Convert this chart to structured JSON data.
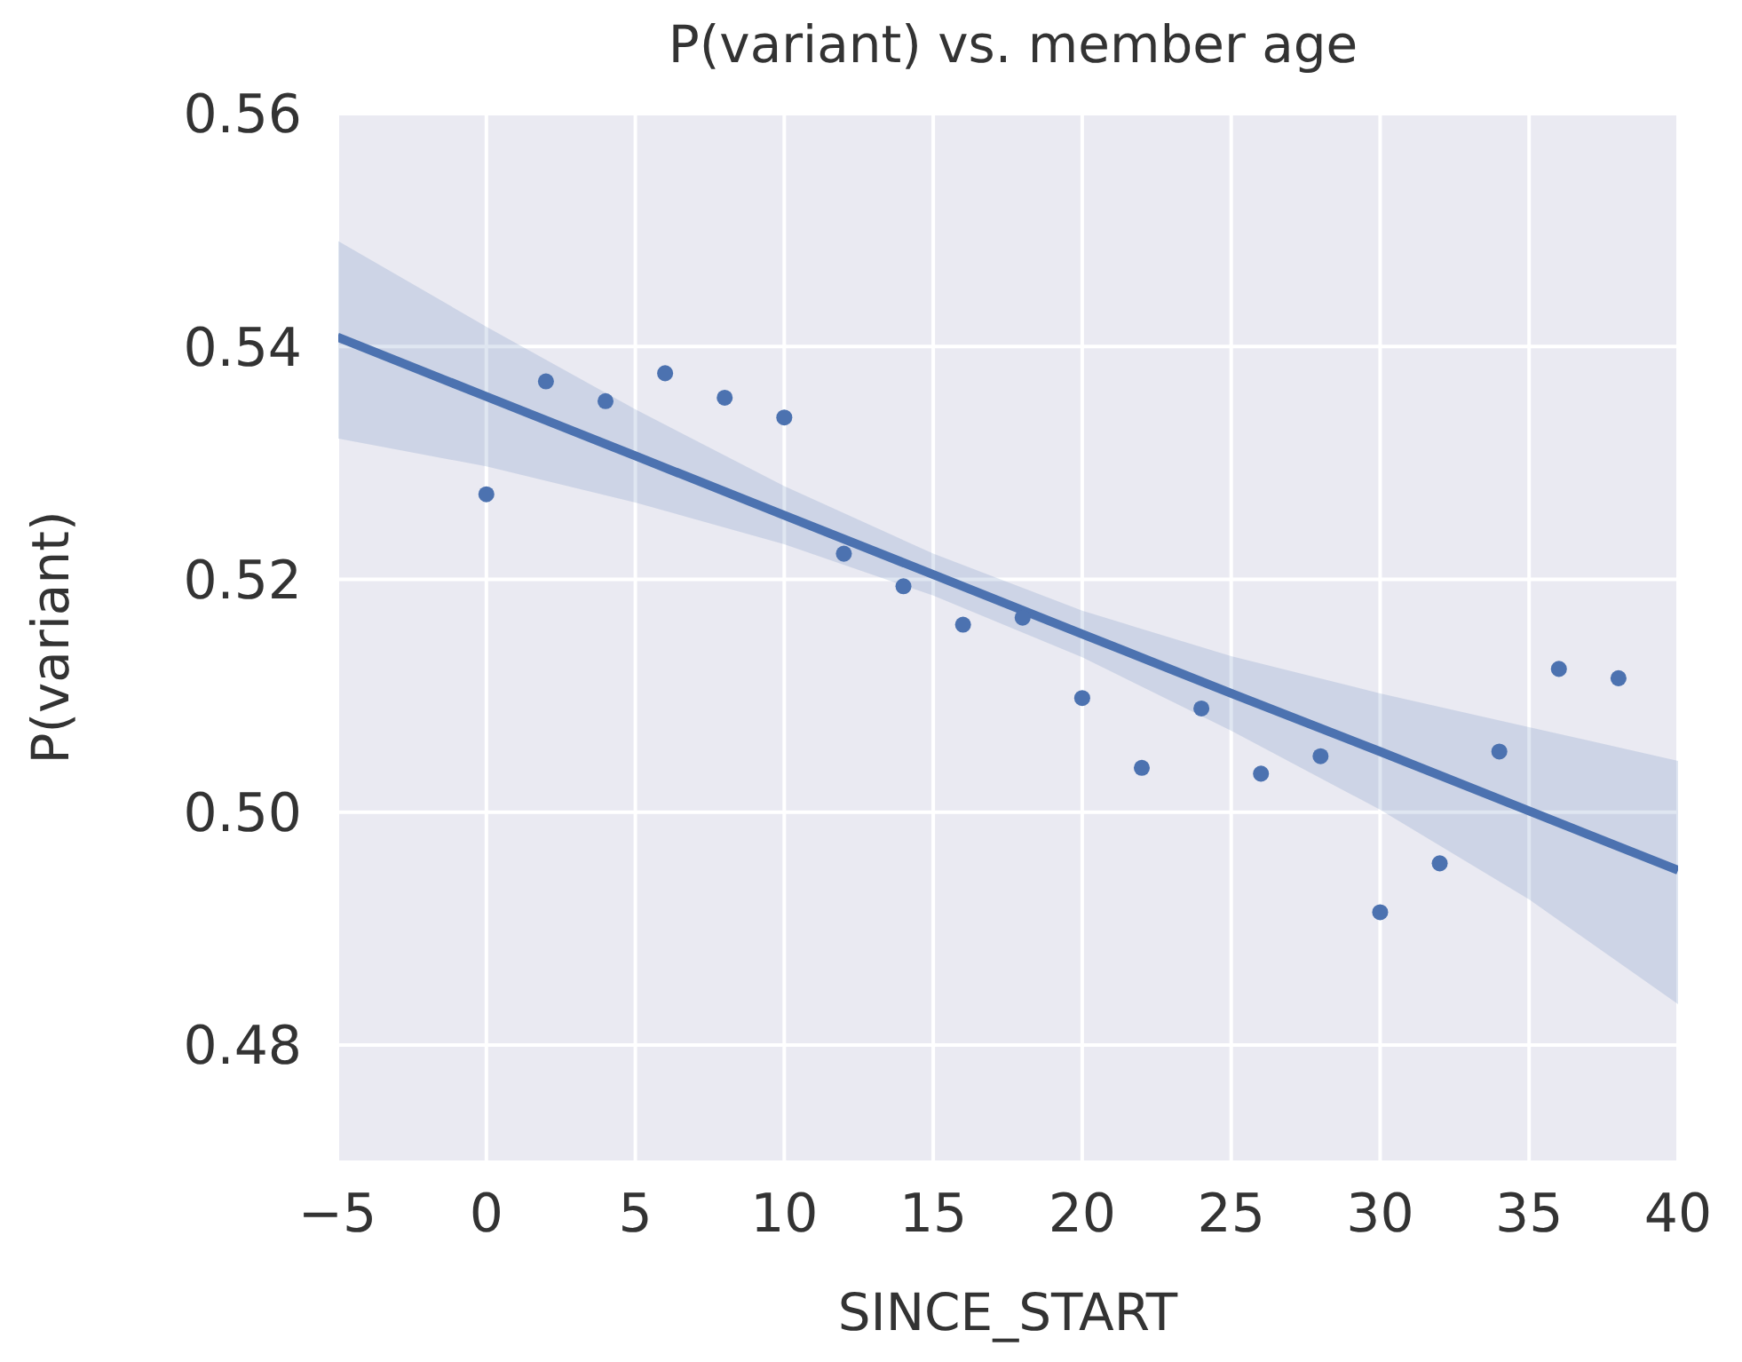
{
  "chart_data": {
    "type": "scatter",
    "title": "P(variant) vs. member age",
    "xlabel": "SINCE_START",
    "ylabel": "P(variant)",
    "series": [
      {
        "type": "scatter",
        "color": "#4c72b0",
        "marker": "circle",
        "x": [
          0,
          2,
          4,
          6,
          8,
          10,
          12,
          14,
          16,
          18,
          20,
          22,
          24,
          26,
          28,
          30,
          32,
          34,
          36,
          38
        ],
        "values": [
          0.5273,
          0.537,
          0.5353,
          0.5377,
          0.5356,
          0.5339,
          0.5222,
          0.5194,
          0.5161,
          0.5167,
          0.5098,
          0.5038,
          0.5089,
          0.5033,
          0.5048,
          0.4914,
          0.4956,
          0.5052,
          0.5123,
          0.5115
        ]
      },
      {
        "marker": "none",
        "type": "line",
        "color": "#4c72b0",
        "x": [
          -5,
          0,
          5,
          10,
          15,
          20,
          25,
          30,
          35,
          40
        ],
        "values": [
          0.5408,
          0.5357,
          0.5306,
          0.5255,
          0.5204,
          0.5153,
          0.5102,
          0.5052,
          0.5001,
          0.495
        ],
        "lower": [
          0.5321,
          0.5297,
          0.5266,
          0.523,
          0.5186,
          0.5133,
          0.507,
          0.5002,
          0.4925,
          0.4835
        ],
        "upper": [
          0.5491,
          0.5417,
          0.5346,
          0.528,
          0.5222,
          0.5173,
          0.5134,
          0.5102,
          0.5073,
          0.5044
        ]
      }
    ],
    "xlim": [
      -5,
      40
    ],
    "xticks": [
      {
        "value": -5,
        "label": "−5"
      },
      0,
      5,
      10,
      15,
      20,
      25,
      30,
      35,
      40
    ],
    "ylim": [
      0.47,
      0.56
    ],
    "yticks": [
      0.48,
      {
        "value": 0.5,
        "label": "0.50"
      },
      0.52,
      0.54,
      0.56
    ],
    "grid": true,
    "line_style": "solid",
    "legend": false
  }
}
